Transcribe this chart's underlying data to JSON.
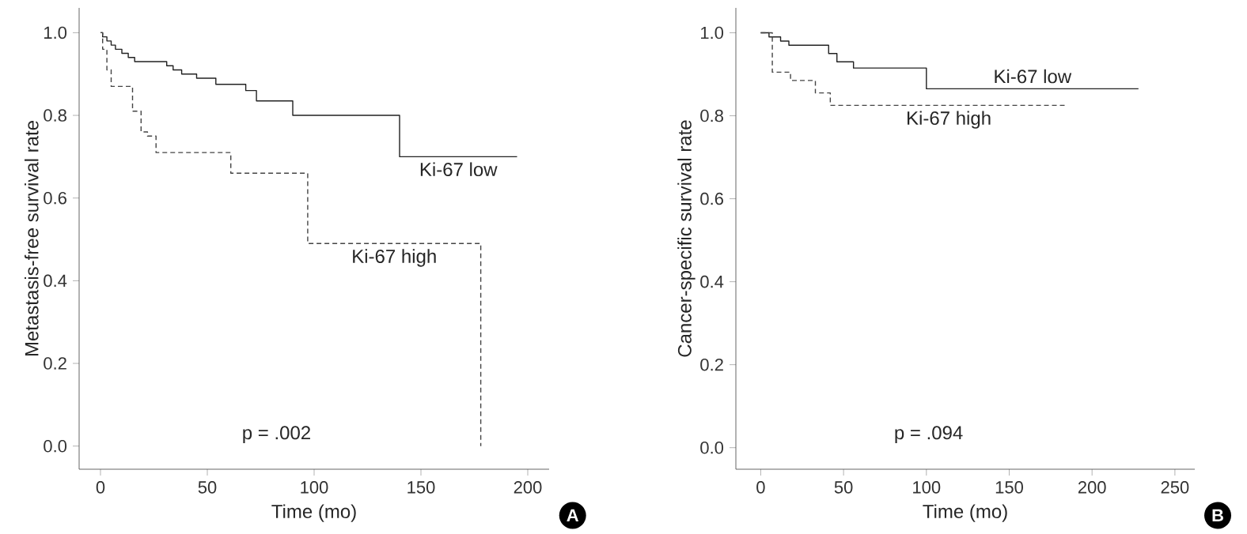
{
  "chart_data": [
    {
      "type": "step",
      "xlabel": "Time (mo)",
      "ylabel": "Metastasis-free survival rate",
      "xlim": [
        -10,
        210
      ],
      "ylim": [
        -0.056,
        1.06
      ],
      "xticks": [
        0,
        50,
        100,
        150,
        200
      ],
      "yticks": [
        {
          "value": 0,
          "label": "0.0"
        },
        {
          "value": 0.2,
          "label": "0.2"
        },
        {
          "value": 0.4,
          "label": "0.4"
        },
        {
          "value": 0.6,
          "label": "0.6"
        },
        {
          "value": 0.8,
          "label": "0.8"
        },
        {
          "value": 1,
          "label": "1.0"
        }
      ],
      "series": [
        {
          "name": "Ki-67 low",
          "color": "#222222",
          "line_style": "solid",
          "x": [
            0,
            1,
            3,
            5,
            7,
            10,
            13,
            16,
            31,
            34,
            38,
            45,
            54,
            68,
            73,
            90,
            140,
            195
          ],
          "values": [
            1.0,
            0.99,
            0.98,
            0.97,
            0.96,
            0.95,
            0.94,
            0.93,
            0.92,
            0.91,
            0.9,
            0.89,
            0.875,
            0.86,
            0.835,
            0.8,
            0.7,
            0.7
          ]
        },
        {
          "name": "Ki-67 high",
          "color": "#444444",
          "line_style": "dashed",
          "x": [
            0,
            1,
            3,
            5,
            15,
            19,
            22,
            26,
            61,
            97,
            178
          ],
          "values": [
            1.0,
            0.96,
            0.91,
            0.87,
            0.81,
            0.76,
            0.75,
            0.71,
            0.66,
            0.49,
            0.0
          ]
        }
      ],
      "annotations": [
        "p = .002",
        "A"
      ]
    },
    {
      "type": "step",
      "xlabel": "Time (mo)",
      "ylabel": "Cancer-specific survival rate",
      "xlim": [
        -15,
        262
      ],
      "ylim": [
        -0.052,
        1.06
      ],
      "xticks": [
        0,
        50,
        100,
        150,
        200,
        250
      ],
      "yticks": [
        {
          "value": 0,
          "label": "0.0"
        },
        {
          "value": 0.2,
          "label": "0.2"
        },
        {
          "value": 0.4,
          "label": "0.4"
        },
        {
          "value": 0.6,
          "label": "0.6"
        },
        {
          "value": 0.8,
          "label": "0.8"
        },
        {
          "value": 1,
          "label": "1.0"
        }
      ],
      "series": [
        {
          "name": "Ki-67 low",
          "color": "#222222",
          "line_style": "solid",
          "x": [
            0,
            5,
            12,
            17,
            41,
            46,
            56,
            100,
            228
          ],
          "values": [
            1.0,
            0.99,
            0.98,
            0.97,
            0.95,
            0.93,
            0.915,
            0.865,
            0.865
          ]
        },
        {
          "name": "Ki-67 high",
          "color": "#444444",
          "line_style": "dashed",
          "x": [
            0,
            7,
            18,
            33,
            42,
            185
          ],
          "values": [
            1.0,
            0.905,
            0.885,
            0.855,
            0.825,
            0.825
          ]
        }
      ],
      "annotations": [
        "p = .094",
        "B"
      ]
    }
  ]
}
